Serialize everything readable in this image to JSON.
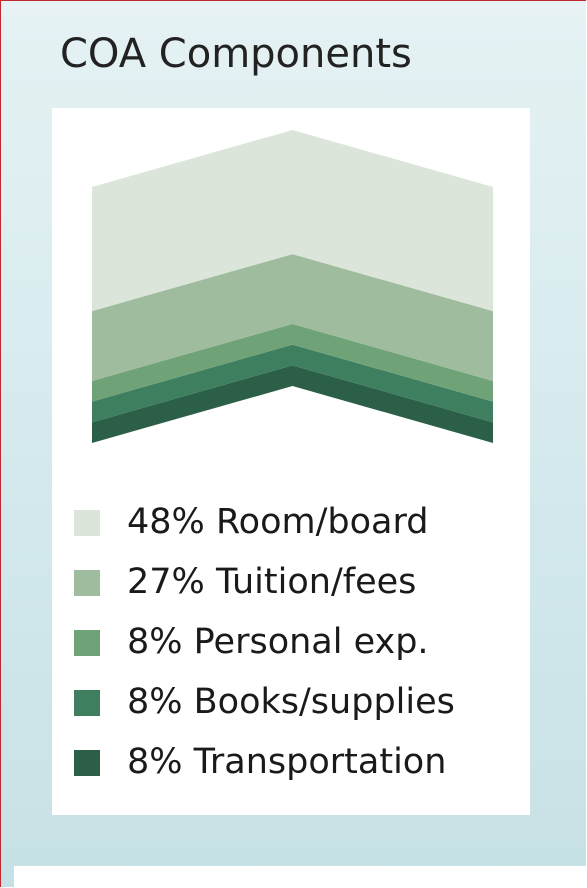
{
  "chart_data": {
    "type": "stacked",
    "title": "COA Components",
    "categories": [
      "Room/board",
      "Tuition/fees",
      "Personal exp.",
      "Books/supplies",
      "Transportation"
    ],
    "values": [
      48,
      27,
      8,
      8,
      8
    ],
    "value_labels": [
      "48%",
      "27%",
      "8%",
      "8%",
      "8%"
    ],
    "colors": [
      "#dbe5da",
      "#9fbd9e",
      "#6fa277",
      "#3e7f5f",
      "#2b5f48"
    ]
  }
}
